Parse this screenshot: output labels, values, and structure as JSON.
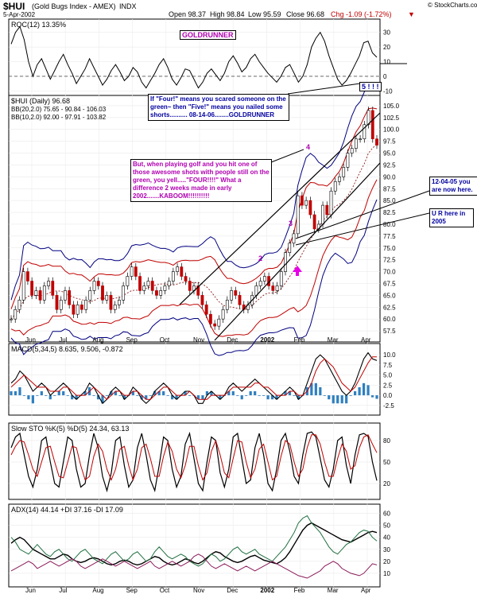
{
  "header": {
    "ticker": "$HUI",
    "name": "(Gold Bugs Index - AMEX)",
    "exchange": "INDX",
    "date": "5-Apr-2002",
    "open": "Open 98.37",
    "high": "High 98.84",
    "low": "Low 95.59",
    "close": "Close 96.68",
    "chg": "Chg -1.09 (-1.72%)",
    "chg_arrow": "▼",
    "watermark": "© StockCharts.com"
  },
  "chart_data": [
    {
      "type": "line",
      "panel": "roc",
      "title": "ROC(12) 13.35%",
      "badge": "GOLDRUNNER",
      "yticks": [
        "30",
        "20",
        "10",
        "0",
        "-10"
      ],
      "ylim": [
        -12,
        38
      ],
      "zero": 0,
      "points": [
        22,
        30,
        34,
        25,
        10,
        0,
        8,
        12,
        5,
        -2,
        4,
        10,
        15,
        8,
        2,
        -5,
        0,
        5,
        12,
        6,
        0,
        -6,
        -2,
        4,
        8,
        3,
        -3,
        0,
        6,
        3,
        -4,
        -8,
        -3,
        2,
        8,
        12,
        6,
        -2,
        -6,
        -1,
        5,
        4,
        -2,
        -8,
        -4,
        2,
        5,
        1,
        -3,
        2,
        10,
        14,
        9,
        3,
        6,
        12,
        15,
        10,
        6,
        2,
        -1,
        -4,
        0,
        6,
        8,
        2,
        -4,
        0,
        8,
        20,
        26,
        30,
        24,
        14,
        6,
        -2,
        -6,
        -3,
        2,
        8,
        14,
        23,
        24,
        16,
        13
      ]
    },
    {
      "type": "candlestick",
      "panel": "price",
      "title": "$HUI (Daily) 96.68",
      "legend": [
        {
          "label": "BB(20,2.0) 75.65 - 90.84 - 106.03",
          "color": "#000080"
        },
        {
          "label": "BB(10,2.0) 92.00 - 97.91 - 103.82",
          "color": "#c00000"
        }
      ],
      "yticks": [
        "105.0",
        "102.5",
        "100.0",
        "97.5",
        "95.0",
        "92.5",
        "90.0",
        "87.5",
        "85.0",
        "82.5",
        "80.0",
        "77.5",
        "75.0",
        "72.5",
        "70.0",
        "67.5",
        "65.0",
        "62.5",
        "60.0",
        "57.5"
      ],
      "ylim": [
        55.5,
        106.5
      ],
      "close": [
        60,
        62,
        64,
        70,
        68,
        65,
        66,
        64,
        67,
        68,
        65,
        62,
        64,
        66,
        63,
        61,
        63,
        62,
        64,
        66,
        68,
        67,
        64,
        65,
        62,
        63,
        64,
        67,
        69,
        71,
        69,
        66,
        67,
        68,
        66,
        65,
        66,
        67,
        68,
        70,
        71,
        69,
        68,
        66,
        67,
        65,
        63,
        61,
        59,
        58.5,
        60,
        62,
        64,
        66,
        65,
        63,
        62,
        63,
        65,
        67,
        68,
        69,
        67,
        66,
        67,
        70,
        74,
        76,
        78,
        86,
        84,
        85,
        82,
        79,
        80,
        84,
        82,
        87,
        89,
        90,
        92,
        95,
        96,
        98,
        98,
        101,
        104,
        98,
        96.68
      ],
      "markers": [
        "2",
        "3",
        "4",
        "5 ! ! !"
      ],
      "annotations": [
        "If \"Four!\" means you scared someone on the green~ then \"Five!\" means you nailed some shorts.......... 08-14-06........GOLDRUNNER",
        "But, when playing golf and you hit one of those awesome shots with people still on the green, you yell.....\"FOUR!!!!\"   What a difference 2 weeks made in early 2002.......KABOOM!!!!!!!!!!",
        "12-04-05 you are now here.",
        "U R here in 2005"
      ]
    },
    {
      "type": "line",
      "panel": "macd",
      "title": "MACD(5,34,5) 8.635, 9.506, -0.872",
      "yticks": [
        "10.0",
        "7.5",
        "5.0",
        "2.5",
        "0.0",
        "-2.5"
      ],
      "ylim": [
        -4.5,
        12
      ],
      "macd": [
        3,
        4,
        6,
        5,
        3,
        1,
        2,
        3,
        2,
        0,
        1,
        2,
        3,
        2,
        0,
        -1,
        0,
        1,
        3,
        2,
        0,
        -2,
        -1,
        1,
        2,
        1,
        -1,
        0,
        2,
        1,
        -1,
        -2,
        -1,
        1,
        2,
        3,
        2,
        0,
        -1,
        0,
        1,
        1,
        0,
        -2,
        -2,
        0,
        1,
        0,
        -1,
        0,
        2,
        3,
        2,
        1,
        2,
        3,
        4,
        3,
        2,
        1,
        0,
        -1,
        0,
        1,
        2,
        1,
        -1,
        0,
        3,
        6,
        9,
        10,
        9,
        7,
        5,
        3,
        1,
        0,
        1,
        3,
        6,
        9,
        10.5,
        9,
        8.6
      ],
      "signal": [
        2,
        3,
        4,
        5,
        4,
        3,
        2,
        2,
        2,
        1,
        1,
        1,
        2,
        2,
        1,
        0,
        0,
        0,
        1,
        2,
        1,
        0,
        -1,
        0,
        1,
        1,
        0,
        0,
        1,
        1,
        0,
        -1,
        -1,
        0,
        1,
        2,
        2,
        1,
        0,
        0,
        0,
        1,
        0,
        -1,
        -1,
        -1,
        0,
        0,
        0,
        0,
        1,
        2,
        2,
        2,
        2,
        2,
        3,
        3,
        2,
        2,
        1,
        0,
        0,
        0,
        1,
        1,
        0,
        0,
        1,
        3,
        6,
        8,
        9,
        8,
        7,
        5,
        3,
        2,
        1,
        2,
        4,
        6,
        8,
        9.5,
        9.5
      ],
      "hist": [
        1,
        1,
        2,
        0,
        -1,
        -2,
        0,
        1,
        0,
        -1,
        0,
        1,
        1,
        0,
        -1,
        -1,
        0,
        1,
        2,
        0,
        -1,
        -2,
        0,
        1,
        1,
        0,
        -1,
        0,
        1,
        0,
        -1,
        -1,
        0,
        1,
        1,
        1,
        0,
        -1,
        -1,
        0,
        1,
        0,
        0,
        -1,
        -1,
        1,
        1,
        0,
        -1,
        0,
        1,
        1,
        0,
        -1,
        0,
        1,
        1,
        0,
        0,
        -1,
        -1,
        -1,
        0,
        1,
        1,
        0,
        -1,
        0,
        2,
        3,
        3,
        2,
        0,
        -1,
        -2,
        -2,
        -2,
        -2,
        0,
        1,
        2,
        3,
        2.5,
        -0.5,
        -0.87
      ]
    },
    {
      "type": "line",
      "panel": "stoch",
      "title": "Slow STO %K(5) %D(5) 24.34, 63.13",
      "yticks": [
        "80",
        "50",
        "20"
      ],
      "ylim": [
        0,
        100
      ],
      "k": [
        70,
        85,
        90,
        60,
        30,
        15,
        40,
        80,
        85,
        50,
        20,
        15,
        50,
        85,
        80,
        40,
        15,
        20,
        60,
        90,
        70,
        30,
        10,
        35,
        80,
        85,
        45,
        15,
        25,
        70,
        90,
        60,
        25,
        10,
        45,
        85,
        80,
        40,
        15,
        30,
        75,
        90,
        55,
        20,
        10,
        50,
        85,
        80,
        35,
        15,
        40,
        85,
        90,
        55,
        20,
        25,
        70,
        90,
        60,
        20,
        10,
        40,
        80,
        90,
        65,
        30,
        20,
        60,
        90,
        92,
        85,
        55,
        25,
        15,
        40,
        80,
        85,
        45,
        20,
        60,
        88,
        90,
        86,
        50,
        24
      ],
      "d": [
        60,
        72,
        80,
        78,
        60,
        40,
        30,
        50,
        70,
        72,
        50,
        30,
        28,
        50,
        72,
        70,
        45,
        25,
        30,
        58,
        75,
        65,
        40,
        25,
        40,
        68,
        72,
        45,
        25,
        40,
        70,
        75,
        55,
        30,
        30,
        58,
        78,
        65,
        40,
        28,
        45,
        72,
        72,
        45,
        25,
        35,
        65,
        80,
        60,
        35,
        28,
        55,
        80,
        78,
        50,
        28,
        40,
        68,
        75,
        50,
        25,
        30,
        58,
        80,
        75,
        50,
        30,
        40,
        70,
        88,
        88,
        75,
        50,
        30,
        30,
        55,
        75,
        65,
        40,
        45,
        70,
        85,
        88,
        75,
        63
      ]
    },
    {
      "type": "line",
      "panel": "adx",
      "title": "ADX(14) 44.14 +DI 37.16 -DI 17.09",
      "yticks": [
        "60",
        "50",
        "40",
        "30",
        "20",
        "10"
      ],
      "ylim": [
        0,
        65
      ],
      "adx": [
        35,
        38,
        40,
        38,
        34,
        30,
        28,
        26,
        24,
        22,
        22,
        24,
        26,
        25,
        22,
        20,
        19,
        20,
        22,
        23,
        22,
        20,
        18,
        17,
        18,
        20,
        21,
        20,
        18,
        17,
        18,
        20,
        22,
        24,
        23,
        20,
        18,
        17,
        18,
        20,
        22,
        21,
        19,
        18,
        20,
        23,
        26,
        28,
        27,
        24,
        22,
        20,
        19,
        20,
        22,
        24,
        25,
        23,
        21,
        20,
        19,
        18,
        20,
        23,
        28,
        34,
        40,
        46,
        50,
        52,
        50,
        48,
        46,
        44,
        42,
        40,
        38,
        37,
        36,
        38,
        40,
        42,
        44,
        45,
        44
      ],
      "plus_di": [
        40,
        36,
        30,
        28,
        26,
        30,
        34,
        30,
        26,
        24,
        28,
        30,
        26,
        22,
        20,
        24,
        28,
        30,
        26,
        22,
        20,
        18,
        22,
        26,
        28,
        24,
        20,
        22,
        26,
        28,
        24,
        20,
        22,
        28,
        32,
        28,
        24,
        22,
        24,
        26,
        24,
        20,
        18,
        16,
        18,
        22,
        26,
        24,
        20,
        22,
        26,
        30,
        32,
        28,
        26,
        28,
        30,
        26,
        24,
        22,
        20,
        24,
        28,
        32,
        38,
        44,
        52,
        56,
        58,
        52,
        48,
        44,
        38,
        32,
        28,
        26,
        30,
        34,
        36,
        40,
        44,
        46,
        45,
        40,
        37
      ],
      "minus_di": [
        12,
        14,
        16,
        18,
        20,
        18,
        14,
        16,
        18,
        20,
        18,
        16,
        18,
        20,
        22,
        20,
        16,
        14,
        16,
        18,
        20,
        22,
        20,
        18,
        16,
        18,
        20,
        18,
        16,
        14,
        16,
        18,
        20,
        16,
        14,
        16,
        18,
        20,
        18,
        16,
        18,
        20,
        24,
        26,
        24,
        20,
        16,
        14,
        16,
        18,
        16,
        14,
        12,
        14,
        16,
        14,
        12,
        14,
        16,
        18,
        20,
        18,
        16,
        14,
        12,
        10,
        8,
        7,
        6,
        8,
        10,
        12,
        16,
        18,
        20,
        18,
        14,
        12,
        10,
        9,
        8,
        10,
        14,
        18,
        17
      ]
    }
  ],
  "months": [
    "Jun",
    "Jul",
    "Aug",
    "Sep",
    "Oct",
    "Nov",
    "Dec",
    "2002",
    "Feb",
    "Mar",
    "Apr"
  ]
}
